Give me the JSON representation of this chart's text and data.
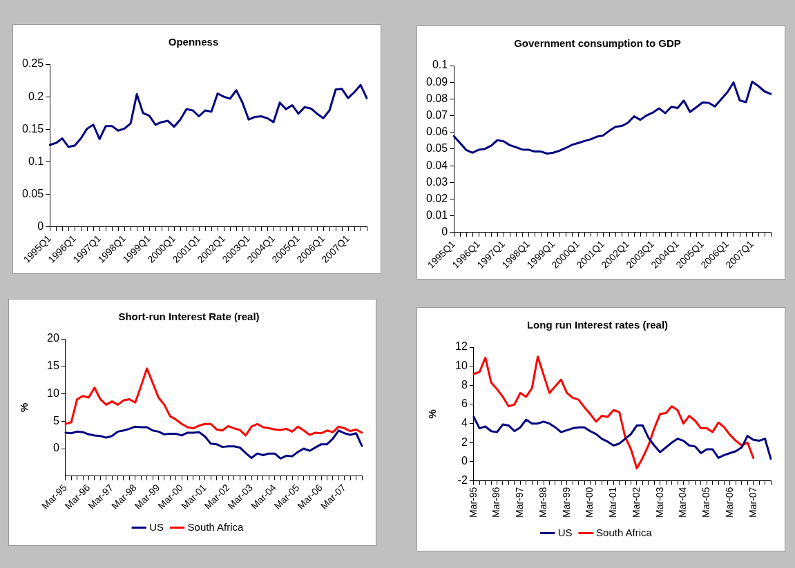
{
  "chart_data": [
    {
      "type": "line",
      "title": "Openness",
      "categories": [
        "1995Q1",
        null,
        null,
        null,
        "1996Q1",
        null,
        null,
        null,
        "1997Q1",
        null,
        null,
        null,
        "1998Q1",
        null,
        null,
        null,
        "1999Q1",
        null,
        null,
        null,
        "2000Q1",
        null,
        null,
        null,
        "2001Q1",
        null,
        null,
        null,
        "2002Q1",
        null,
        null,
        null,
        "2003Q1",
        null,
        null,
        null,
        "2004Q1",
        null,
        null,
        null,
        "2005Q1",
        null,
        null,
        null,
        "2006Q1",
        null,
        null,
        null,
        "2007Q1",
        null,
        null,
        null
      ],
      "series": [
        {
          "color": "#000080",
          "values": [
            0.126,
            0.129,
            0.136,
            0.123,
            0.125,
            0.136,
            0.151,
            0.157,
            0.135,
            0.155,
            0.155,
            0.148,
            0.151,
            0.159,
            0.204,
            0.175,
            0.171,
            0.157,
            0.161,
            0.163,
            0.154,
            0.165,
            0.181,
            0.179,
            0.17,
            0.179,
            0.177,
            0.205,
            0.2,
            0.197,
            0.21,
            0.191,
            0.165,
            0.169,
            0.17,
            0.167,
            0.161,
            0.191,
            0.181,
            0.187,
            0.174,
            0.184,
            0.182,
            0.174,
            0.167,
            0.179,
            0.211,
            0.212,
            0.198,
            0.207,
            0.218,
            0.198
          ]
        }
      ],
      "ylim": [
        0,
        0.25
      ],
      "yticks": [
        0,
        0.05,
        0.1,
        0.15,
        0.2,
        0.25
      ],
      "grid": false,
      "legend": false,
      "marker": "none",
      "line_style": "solid"
    },
    {
      "type": "line",
      "title": "Government consumption to GDP",
      "categories": [
        "1995Q1",
        null,
        null,
        null,
        "1996Q1",
        null,
        null,
        null,
        "1997Q1",
        null,
        null,
        null,
        "1998Q1",
        null,
        null,
        null,
        "1999Q1",
        null,
        null,
        null,
        "2000Q1",
        null,
        null,
        null,
        "2001Q1",
        null,
        null,
        null,
        "2002Q1",
        null,
        null,
        null,
        "2003Q1",
        null,
        null,
        null,
        "2004Q1",
        null,
        null,
        null,
        "2005Q1",
        null,
        null,
        null,
        "2006Q1",
        null,
        null,
        null,
        "2007Q1",
        null,
        null,
        null
      ],
      "series": [
        {
          "color": "#000080",
          "values": [
            0.0577,
            0.0536,
            0.0494,
            0.0478,
            0.0496,
            0.0501,
            0.052,
            0.0553,
            0.0546,
            0.0523,
            0.0511,
            0.0497,
            0.0496,
            0.0485,
            0.0485,
            0.0473,
            0.0478,
            0.049,
            0.0506,
            0.0525,
            0.0536,
            0.0548,
            0.0558,
            0.0574,
            0.0581,
            0.0609,
            0.0633,
            0.0638,
            0.0657,
            0.0696,
            0.0675,
            0.0701,
            0.0718,
            0.0744,
            0.0715,
            0.0753,
            0.0746,
            0.079,
            0.0722,
            0.075,
            0.0779,
            0.0777,
            0.0755,
            0.0797,
            0.084,
            0.0899,
            0.0791,
            0.0781,
            0.0904,
            0.0877,
            0.0845,
            0.083
          ]
        }
      ],
      "ylim": [
        0,
        0.1
      ],
      "yticks": [
        0,
        0.01,
        0.02,
        0.03,
        0.04,
        0.05,
        0.06,
        0.07,
        0.08,
        0.09,
        0.1
      ],
      "grid": false,
      "legend": false,
      "marker": "none",
      "line_style": "solid"
    },
    {
      "type": "line",
      "title": "Short-run Interest Rate (real)",
      "ylabel": "%",
      "categories": [
        "Mar-95",
        null,
        null,
        null,
        "Mar-96",
        null,
        null,
        null,
        "Mar-97",
        null,
        null,
        null,
        "Mar-98",
        null,
        null,
        null,
        "Mar-99",
        null,
        null,
        null,
        "Mar-00",
        null,
        null,
        null,
        "Mar-01",
        null,
        null,
        null,
        "Mar-02",
        null,
        null,
        null,
        "Mar-03",
        null,
        null,
        null,
        "Mar-04",
        null,
        null,
        null,
        "Mar-05",
        null,
        null,
        null,
        "Mar-06",
        null,
        null,
        null,
        "Mar-07",
        null,
        null,
        null
      ],
      "series": [
        {
          "name": "US",
          "color": "#000080",
          "values": [
            2.9,
            2.8,
            3.1,
            3.0,
            2.6,
            2.4,
            2.3,
            2.0,
            2.3,
            3.1,
            3.3,
            3.6,
            4.0,
            3.9,
            3.9,
            3.3,
            3.1,
            2.6,
            2.7,
            2.7,
            2.4,
            2.9,
            2.9,
            3.0,
            2.2,
            0.9,
            0.8,
            0.3,
            0.4,
            0.4,
            0.2,
            -0.8,
            -1.7,
            -0.9,
            -1.2,
            -0.9,
            -0.9,
            -1.8,
            -1.3,
            -1.4,
            -0.6,
            0,
            -0.4,
            0.2,
            0.8,
            0.8,
            1.8,
            3.3,
            2.8,
            2.5,
            2.8,
            0.5
          ]
        },
        {
          "name": "South Africa",
          "color": "#ff0000",
          "values": [
            4.5,
            4.8,
            9.0,
            9.6,
            9.3,
            11.1,
            9.0,
            8.0,
            8.6,
            8.0,
            8.8,
            9.0,
            8.4,
            11.4,
            14.6,
            12.0,
            9.3,
            8.0,
            5.9,
            5.3,
            4.5,
            3.9,
            3.7,
            4.2,
            4.5,
            4.5,
            3.5,
            3.3,
            4.1,
            3.7,
            3.4,
            2.4,
            4.0,
            4.5,
            3.9,
            3.7,
            3.5,
            3.4,
            3.6,
            3.1,
            4.0,
            3.3,
            2.5,
            2.9,
            2.8,
            3.3,
            3.0,
            4.0,
            3.7,
            3.2,
            3.5,
            2.9
          ]
        }
      ],
      "ylim": [
        -5,
        20
      ],
      "yticks": [
        0,
        5,
        10,
        15,
        20
      ],
      "grid": false,
      "legend": "bottom",
      "marker": "none",
      "line_style": "solid"
    },
    {
      "type": "line",
      "title": "Long run Interest rates (real)",
      "ylabel": "%",
      "categories": [
        "Mar-95",
        null,
        null,
        null,
        "Mar-96",
        null,
        null,
        null,
        "Mar-97",
        null,
        null,
        null,
        "Mar-98",
        null,
        null,
        null,
        "Mar-99",
        null,
        null,
        null,
        "Mar-00",
        null,
        null,
        null,
        "Mar-01",
        null,
        null,
        null,
        "Mar-02",
        null,
        null,
        null,
        "Mar-03",
        null,
        null,
        null,
        "Mar-04",
        null,
        null,
        null,
        "Mar-05",
        null,
        null,
        null,
        "Mar-06",
        null,
        null,
        null,
        "Mar-07",
        null,
        null,
        null
      ],
      "series": [
        {
          "name": "US",
          "color": "#000080",
          "values": [
            4.7,
            3.5,
            3.7,
            3.2,
            3.1,
            3.9,
            3.8,
            3.2,
            3.6,
            4.4,
            4.0,
            4.0,
            4.2,
            4.0,
            3.6,
            3.1,
            3.3,
            3.5,
            3.6,
            3.6,
            3.2,
            2.9,
            2.4,
            2.1,
            1.7,
            1.9,
            2.4,
            2.9,
            3.8,
            3.8,
            2.5,
            1.7,
            1.0,
            1.5,
            2.0,
            2.4,
            2.2,
            1.7,
            1.6,
            0.9,
            1.3,
            1.3,
            0.4,
            0.7,
            0.9,
            1.1,
            1.5,
            2.7,
            2.3,
            2.2,
            2.4,
            0.3
          ]
        },
        {
          "name": "South Africa",
          "color": "#ff0000",
          "values": [
            9.2,
            9.4,
            10.9,
            8.3,
            7.6,
            6.8,
            5.8,
            6.0,
            7.2,
            6.8,
            7.7,
            11.0,
            9.1,
            7.2,
            7.9,
            8.6,
            7.2,
            6.7,
            6.5,
            5.7,
            5.0,
            4.2,
            4.8,
            4.7,
            5.4,
            5.2,
            2.6,
            1.3,
            -0.7,
            0.4,
            1.7,
            3.5,
            5.0,
            5.1,
            5.8,
            5.4,
            4.0,
            4.8,
            4.3,
            3.5,
            3.5,
            3.1,
            4.1,
            3.6,
            2.8,
            2.2,
            1.7,
            2.0,
            0.4,
            null,
            null,
            null
          ]
        }
      ],
      "ylim": [
        -2,
        12
      ],
      "yticks": [
        -2,
        0,
        2,
        4,
        6,
        8,
        10,
        12
      ],
      "grid": false,
      "legend": "bottom",
      "marker": "none",
      "line_style": "solid"
    }
  ]
}
